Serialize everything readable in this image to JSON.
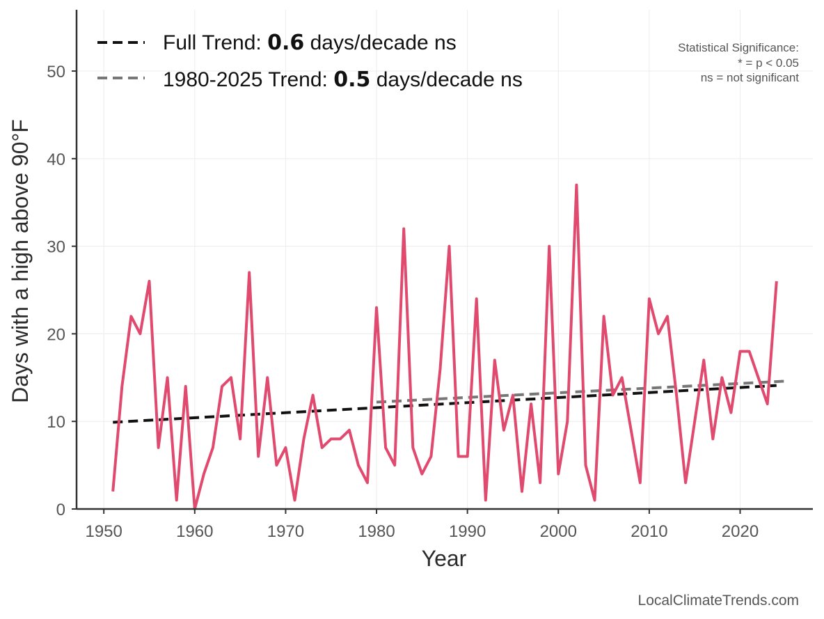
{
  "chart_data": {
    "type": "line",
    "xlabel": "Year",
    "ylabel": "Days with a high above 90°F",
    "xlim": [
      1947,
      2028
    ],
    "ylim": [
      0,
      57
    ],
    "x_ticks": [
      1950,
      1960,
      1970,
      1980,
      1990,
      2000,
      2010,
      2020
    ],
    "y_ticks": [
      0,
      10,
      20,
      30,
      40,
      50
    ],
    "grid": true,
    "legend_position": "top-left",
    "series": [
      {
        "color": "#e04a6e",
        "x": [
          1951,
          1952,
          1953,
          1954,
          1955,
          1956,
          1957,
          1958,
          1959,
          1960,
          1961,
          1962,
          1963,
          1964,
          1965,
          1966,
          1967,
          1968,
          1969,
          1970,
          1971,
          1972,
          1973,
          1974,
          1975,
          1976,
          1977,
          1978,
          1979,
          1980,
          1981,
          1982,
          1983,
          1984,
          1985,
          1986,
          1987,
          1988,
          1989,
          1990,
          1991,
          1992,
          1993,
          1994,
          1995,
          1996,
          1997,
          1998,
          1999,
          2000,
          2001,
          2002,
          2003,
          2004,
          2005,
          2006,
          2007,
          2008,
          2009,
          2010,
          2011,
          2012,
          2013,
          2014,
          2015,
          2016,
          2017,
          2018,
          2019,
          2020,
          2021,
          2022,
          2023,
          2024
        ],
        "y": [
          2,
          14,
          22,
          20,
          26,
          7,
          15,
          1,
          14,
          0,
          4,
          7,
          14,
          15,
          8,
          27,
          6,
          15,
          5,
          7,
          1,
          8,
          13,
          7,
          8,
          8,
          9,
          5,
          3,
          23,
          7,
          5,
          32,
          7,
          4,
          6,
          16,
          30,
          6,
          6,
          24,
          1,
          17,
          9,
          13,
          2,
          12,
          3,
          30,
          4,
          10,
          37,
          5,
          1,
          22,
          13,
          15,
          9,
          3,
          24,
          20,
          22,
          13,
          3,
          10,
          17,
          8,
          15,
          11,
          18,
          18,
          15,
          12,
          26
        ]
      }
    ],
    "trends": [
      {
        "label": "Full Trend:",
        "value": "0.6",
        "unit": "days/decade ns",
        "color": "#111111",
        "x": [
          1951,
          2024
        ],
        "y": [
          9.9,
          14.1
        ]
      },
      {
        "label": "1980-2025 Trend:",
        "value": "0.5",
        "unit": "days/decade ns",
        "color": "#777777",
        "x": [
          1980,
          2025
        ],
        "y": [
          12.2,
          14.6
        ]
      }
    ]
  },
  "significance_note": {
    "title": "Statistical Significance:",
    "line1": "* = p < 0.05",
    "line2": "ns = not significant"
  },
  "source": "LocalClimateTrends.com"
}
